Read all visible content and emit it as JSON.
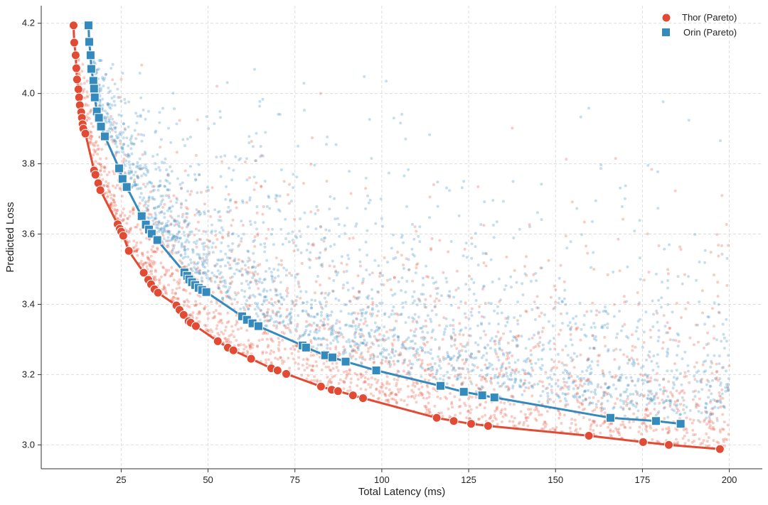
{
  "chart_data": {
    "type": "scatter",
    "title": "",
    "xlabel": "Total Latency (ms)",
    "ylabel": "Predicted Loss",
    "xlim": [
      2,
      209.5
    ],
    "ylim": [
      2.932,
      4.25
    ],
    "xticks": [
      25,
      50,
      75,
      100,
      125,
      150,
      175,
      200
    ],
    "yticks": [
      3.0,
      3.2,
      3.4,
      3.6,
      3.8,
      4.0,
      4.2
    ],
    "grid": true,
    "legend_position": "top-right",
    "series": [
      {
        "name": "Thor (Pareto)",
        "color": "#e24a33",
        "marker": "circle",
        "x": [
          11.3,
          11.5,
          11.9,
          12.1,
          12.3,
          12.7,
          12.9,
          13.1,
          13.5,
          13.7,
          13.9,
          14.1,
          14.7,
          17.2,
          17.6,
          18.4,
          19.0,
          24.0,
          24.6,
          25.0,
          25.6,
          27.2,
          31.5,
          32.8,
          33.6,
          34.6,
          35.6,
          40.9,
          41.8,
          43.0,
          44.4,
          45.0,
          46.5,
          52.8,
          55.7,
          57.3,
          62.4,
          68.2,
          70.0,
          72.5,
          82.5,
          85.6,
          87.4,
          91.7,
          94.6,
          115.8,
          120.7,
          125.7,
          130.6,
          159.6,
          175.2,
          182.6,
          197.3
        ],
        "y": [
          4.194,
          4.145,
          4.109,
          4.072,
          4.04,
          4.012,
          3.989,
          3.967,
          3.947,
          3.931,
          3.913,
          3.9,
          3.886,
          3.781,
          3.769,
          3.745,
          3.725,
          3.628,
          3.615,
          3.607,
          3.595,
          3.552,
          3.49,
          3.47,
          3.457,
          3.443,
          3.433,
          3.397,
          3.384,
          3.37,
          3.352,
          3.348,
          3.338,
          3.295,
          3.277,
          3.269,
          3.245,
          3.218,
          3.212,
          3.202,
          3.166,
          3.157,
          3.153,
          3.141,
          3.133,
          3.077,
          3.068,
          3.06,
          3.054,
          3.026,
          3.008,
          3.0,
          2.988
        ]
      },
      {
        "name": "Orin (Pareto)",
        "color": "#348abd",
        "marker": "square",
        "x": [
          15.6,
          15.8,
          16.2,
          16.4,
          17.0,
          17.2,
          17.4,
          18.0,
          18.6,
          19.2,
          20.3,
          24.4,
          25.4,
          26.6,
          30.9,
          32.1,
          33.0,
          33.8,
          35.4,
          43.2,
          44.0,
          44.6,
          45.4,
          46.3,
          47.3,
          48.3,
          49.5,
          59.8,
          61.2,
          62.8,
          64.5,
          77.2,
          78.2,
          83.7,
          85.8,
          89.6,
          98.4,
          116.9,
          123.6,
          128.9,
          132.4,
          165.8,
          178.9,
          186.0
        ],
        "y": [
          4.194,
          4.147,
          4.109,
          4.07,
          4.036,
          4.014,
          3.989,
          3.949,
          3.931,
          3.906,
          3.878,
          3.787,
          3.757,
          3.734,
          3.651,
          3.627,
          3.613,
          3.601,
          3.583,
          3.491,
          3.481,
          3.471,
          3.463,
          3.455,
          3.447,
          3.441,
          3.435,
          3.366,
          3.356,
          3.346,
          3.338,
          3.283,
          3.277,
          3.255,
          3.249,
          3.237,
          3.212,
          3.168,
          3.151,
          3.141,
          3.135,
          3.077,
          3.068,
          3.06
        ]
      }
    ]
  }
}
